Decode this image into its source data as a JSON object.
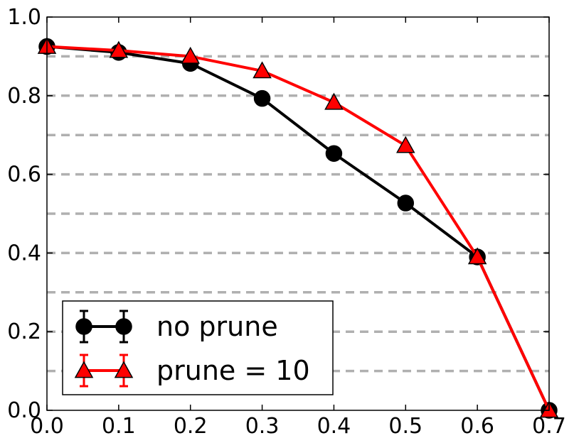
{
  "chart_data": {
    "type": "line",
    "title": "",
    "xlabel": "",
    "ylabel": "",
    "xlim": [
      0.0,
      0.7
    ],
    "ylim": [
      0.0,
      1.0
    ],
    "xticks": [
      "0.0",
      "0.1",
      "0.2",
      "0.3",
      "0.4",
      "0.5",
      "0.6",
      "0.7"
    ],
    "yticks": [
      "0.0",
      "0.2",
      "0.4",
      "0.6",
      "0.8",
      "1.0"
    ],
    "grid": {
      "axis": "y",
      "style": "dashed",
      "color": "#b0b0b0",
      "values": [
        0.1,
        0.2,
        0.3,
        0.4,
        0.5,
        0.6,
        0.7,
        0.8,
        0.9
      ]
    },
    "legend": {
      "placement": "lower-left"
    },
    "series": [
      {
        "name": "no prune",
        "color": "#000000",
        "marker": "circle",
        "x": [
          0.0,
          0.1,
          0.2,
          0.3,
          0.4,
          0.5,
          0.6,
          0.7
        ],
        "y": [
          0.925,
          0.91,
          0.882,
          0.793,
          0.653,
          0.527,
          0.39,
          0.0
        ]
      },
      {
        "name": "prune = 10",
        "color": "#ff0000",
        "marker": "triangle",
        "x": [
          0.0,
          0.1,
          0.2,
          0.3,
          0.4,
          0.5,
          0.6,
          0.7
        ],
        "y": [
          0.925,
          0.915,
          0.9,
          0.863,
          0.783,
          0.673,
          0.39,
          0.0
        ]
      }
    ]
  }
}
